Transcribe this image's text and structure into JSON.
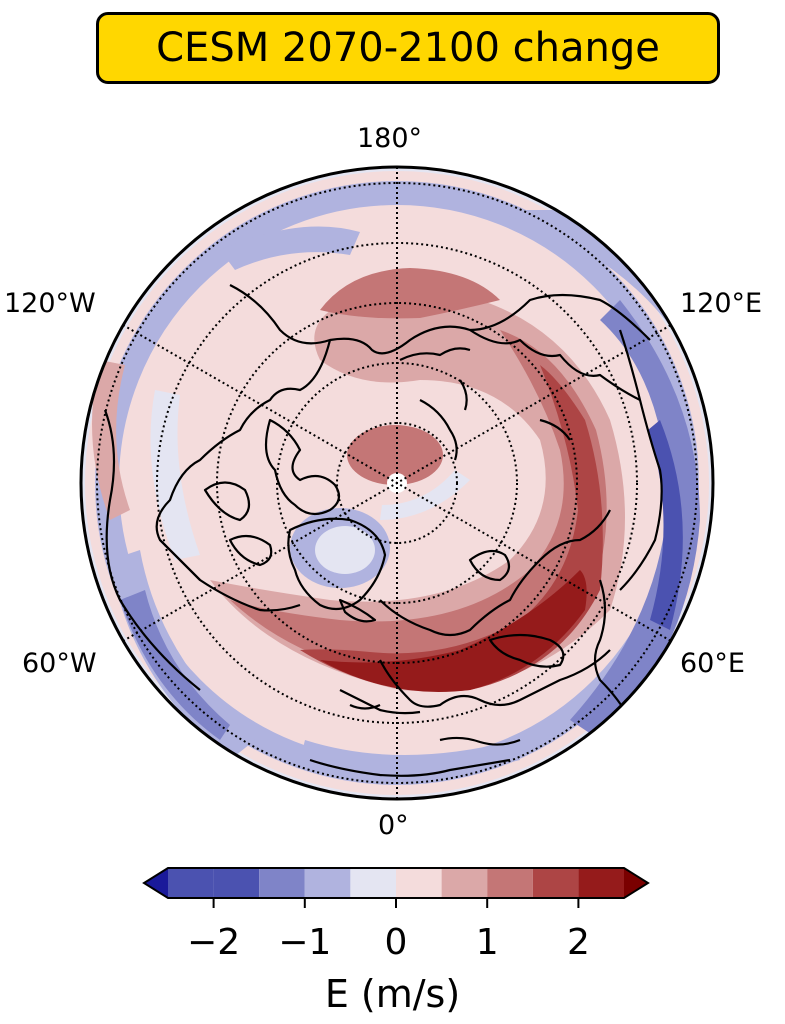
{
  "title": "CESM 2070-2100 change",
  "title_bg_color": "#ffd700",
  "map": {
    "projection": "north-polar-stereographic",
    "longitude_labels": {
      "top": "180°",
      "upper_left": "120°W",
      "upper_right": "120°E",
      "lower_left": "60°W",
      "lower_right": "60°E",
      "bottom": "0°"
    },
    "gridlines": "dotted",
    "coastlines": true,
    "field_description_levels": [
      -2.5,
      -2,
      -1.5,
      -1,
      -0.5,
      0,
      0.5,
      1,
      1.5,
      2,
      2.5
    ]
  },
  "colorbar": {
    "label": "E (m/s)",
    "tick_labels": [
      "−2",
      "−1",
      "0",
      "1",
      "2"
    ],
    "tick_values": [
      -2,
      -1,
      0,
      1,
      2
    ],
    "boundaries": [
      -2.5,
      -2,
      -1.5,
      -1,
      -0.5,
      0,
      0.5,
      1,
      1.5,
      2,
      2.5
    ],
    "extend": "both",
    "colors": [
      "#1a1a9a",
      "#4b52b0",
      "#7f84c8",
      "#b0b3df",
      "#e4e5f2",
      "#f4dcdc",
      "#dba8a8",
      "#c47676",
      "#ad4545",
      "#951b1b",
      "#7a0000"
    ]
  }
}
